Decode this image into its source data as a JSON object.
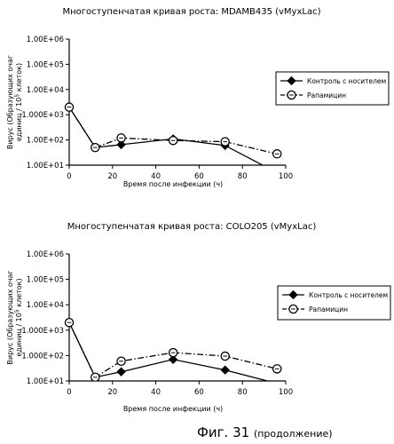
{
  "figure_caption": {
    "main": "Фиг. 31",
    "sub": "(продолжение)"
  },
  "chart_data": [
    {
      "type": "line",
      "title": "Многоступенчатая кривая роста: MDAMB435 (vMyxLac)",
      "xlabel": "Время после инфекции (ч)",
      "ylabel_line1": "Вирус (Образующих очаг",
      "ylabel_line2": "единиц / 10",
      "ylabel_sup": "5",
      "ylabel_line2_end": " клеток)",
      "xlim": [
        0,
        100
      ],
      "xticks": [
        "0",
        "20",
        "40",
        "60",
        "80",
        "100"
      ],
      "yscale": "log",
      "ylim": [
        10,
        1000000
      ],
      "yticks": [
        "1.00E+01",
        "1.00E+02",
        "1.000E+03",
        "1.00E+04",
        "1.00E+05",
        "1.00E+06"
      ],
      "legend_position": "right",
      "series": [
        {
          "name": "Контроль с носителем",
          "style": "solid",
          "marker": "diamond",
          "x": [
            0,
            12,
            24,
            48,
            72,
            96
          ],
          "y": [
            2000,
            50,
            65,
            110,
            60,
            5
          ]
        },
        {
          "name": "Рапамицин",
          "style": "dashdot",
          "marker": "circle-x",
          "x": [
            0,
            12,
            24,
            48,
            72,
            96
          ],
          "y": [
            2000,
            50,
            120,
            95,
            85,
            28
          ]
        }
      ]
    },
    {
      "type": "line",
      "title": "Многоступенчатая кривая роста: COLO205 (vMyxLac)",
      "xlabel": "Время после инфекции (ч)",
      "ylabel_line1": "Вирус (Образующих очаг",
      "ylabel_line2": "единиц / 10",
      "ylabel_sup": "5",
      "ylabel_line2_end": " клеток)",
      "xlim": [
        0,
        100
      ],
      "xticks": [
        "0",
        "20",
        "40",
        "60",
        "80",
        "100"
      ],
      "yscale": "log",
      "ylim": [
        10,
        1000000
      ],
      "yticks": [
        "1.00E+01",
        "1.000E+02",
        "1.000E+03",
        "1.00E+04",
        "1.00E+05",
        "1.00E+06"
      ],
      "legend_position": "right",
      "series": [
        {
          "name": "Контроль с носителем",
          "style": "solid",
          "marker": "diamond",
          "x": [
            0,
            12,
            24,
            48,
            72,
            96
          ],
          "y": [
            2000,
            14,
            23,
            70,
            27,
            8
          ]
        },
        {
          "name": "Рапамицин",
          "style": "dashdot",
          "marker": "circle-x",
          "x": [
            0,
            12,
            24,
            48,
            72,
            96
          ],
          "y": [
            2000,
            14,
            60,
            130,
            95,
            30
          ]
        }
      ]
    }
  ]
}
